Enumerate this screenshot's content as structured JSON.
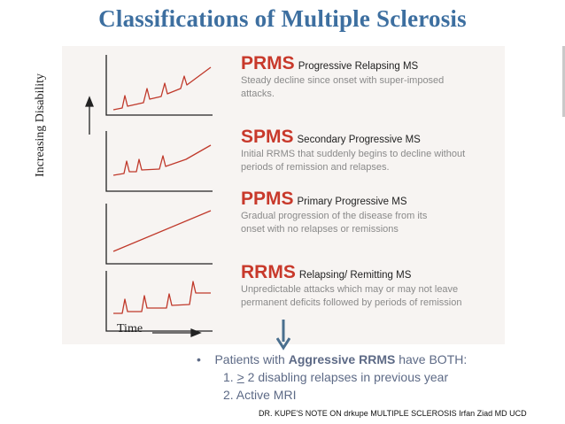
{
  "title": "Classifications of Multiple Sclerosis",
  "axes": {
    "y_label": "Increasing Disability",
    "x_label": "Time"
  },
  "classes": [
    {
      "abbr": "PRMS",
      "name": "Progressive Relapsing MS",
      "line1": "Steady decline since onset with super-imposed",
      "line2": "attacks."
    },
    {
      "abbr": "SPMS",
      "name": "Secondary Progressive MS",
      "line1": "Initial RRMS that suddenly begins to decline without",
      "line2": "periods of remission and relapses."
    },
    {
      "abbr": "PPMS",
      "name": "Primary Progressive MS",
      "line1": "Gradual progression of the disease from its",
      "line2": "onset with no relapses or remissions"
    },
    {
      "abbr": "RRMS",
      "name": "Relapsing/ Remitting MS",
      "line1": "Unpredictable attacks which may or may not leave",
      "line2": "permanent deficits followed by periods of remission"
    }
  ],
  "bullets": {
    "marker": "•",
    "intro_before": "Patients with",
    "intro_bold": "Aggressive RRMS",
    "intro_after": "have BOTH:",
    "item1_num": "1.",
    "item1_sym": ">",
    "item1_rest": "2 disabling relapses in previous year",
    "item2": "2. Active MRI"
  },
  "footer": "DR. KUPE'S NOTE ON drkupe MULTIPLE SCLEROSIS Irfan Ziad MD UCD",
  "colors": {
    "title": "#3d6fa0",
    "accent_red": "#c8392b",
    "curve": "#c0392b",
    "arrow": "#4a6f8f",
    "bullet_text": "#5d6a86"
  }
}
